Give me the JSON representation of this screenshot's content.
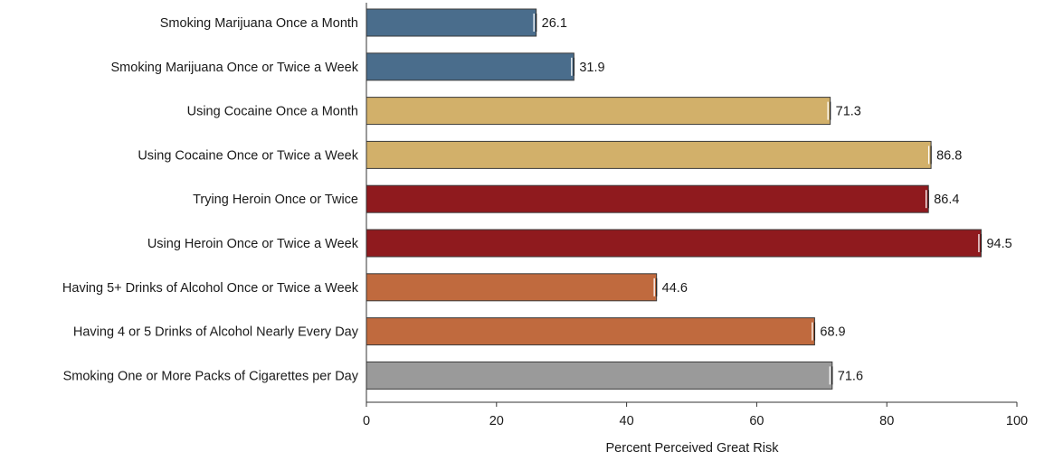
{
  "chart_data": {
    "type": "bar",
    "orientation": "horizontal",
    "title": "",
    "xlabel": "Percent Perceived Great Risk",
    "ylabel": "",
    "xlim": [
      0,
      100
    ],
    "xticks": [
      0,
      20,
      40,
      60,
      80,
      100
    ],
    "grid": false,
    "error_bars": true,
    "categories": [
      "Smoking Marijuana Once a Month",
      "Smoking Marijuana Once or Twice a Week",
      "Using Cocaine Once a Month",
      "Using Cocaine Once or Twice a Week",
      "Trying Heroin Once or Twice",
      "Using Heroin Once or Twice a Week",
      "Having 5+ Drinks of Alcohol Once or Twice a Week",
      "Having 4 or 5 Drinks of Alcohol Nearly Every Day",
      "Smoking One or More Packs of Cigarettes per Day"
    ],
    "values": [
      26.1,
      31.9,
      71.3,
      86.8,
      86.4,
      94.5,
      44.6,
      68.9,
      71.6
    ],
    "value_labels": [
      "26.1",
      "31.9",
      "71.3",
      "86.8",
      "86.4",
      "94.5",
      "44.6",
      "68.9",
      "71.6"
    ],
    "colors": [
      "#4a6d8c",
      "#4a6d8c",
      "#d2b06a",
      "#d2b06a",
      "#8f1a1e",
      "#8f1a1e",
      "#c06a3e",
      "#c06a3e",
      "#9a9a9a"
    ]
  }
}
